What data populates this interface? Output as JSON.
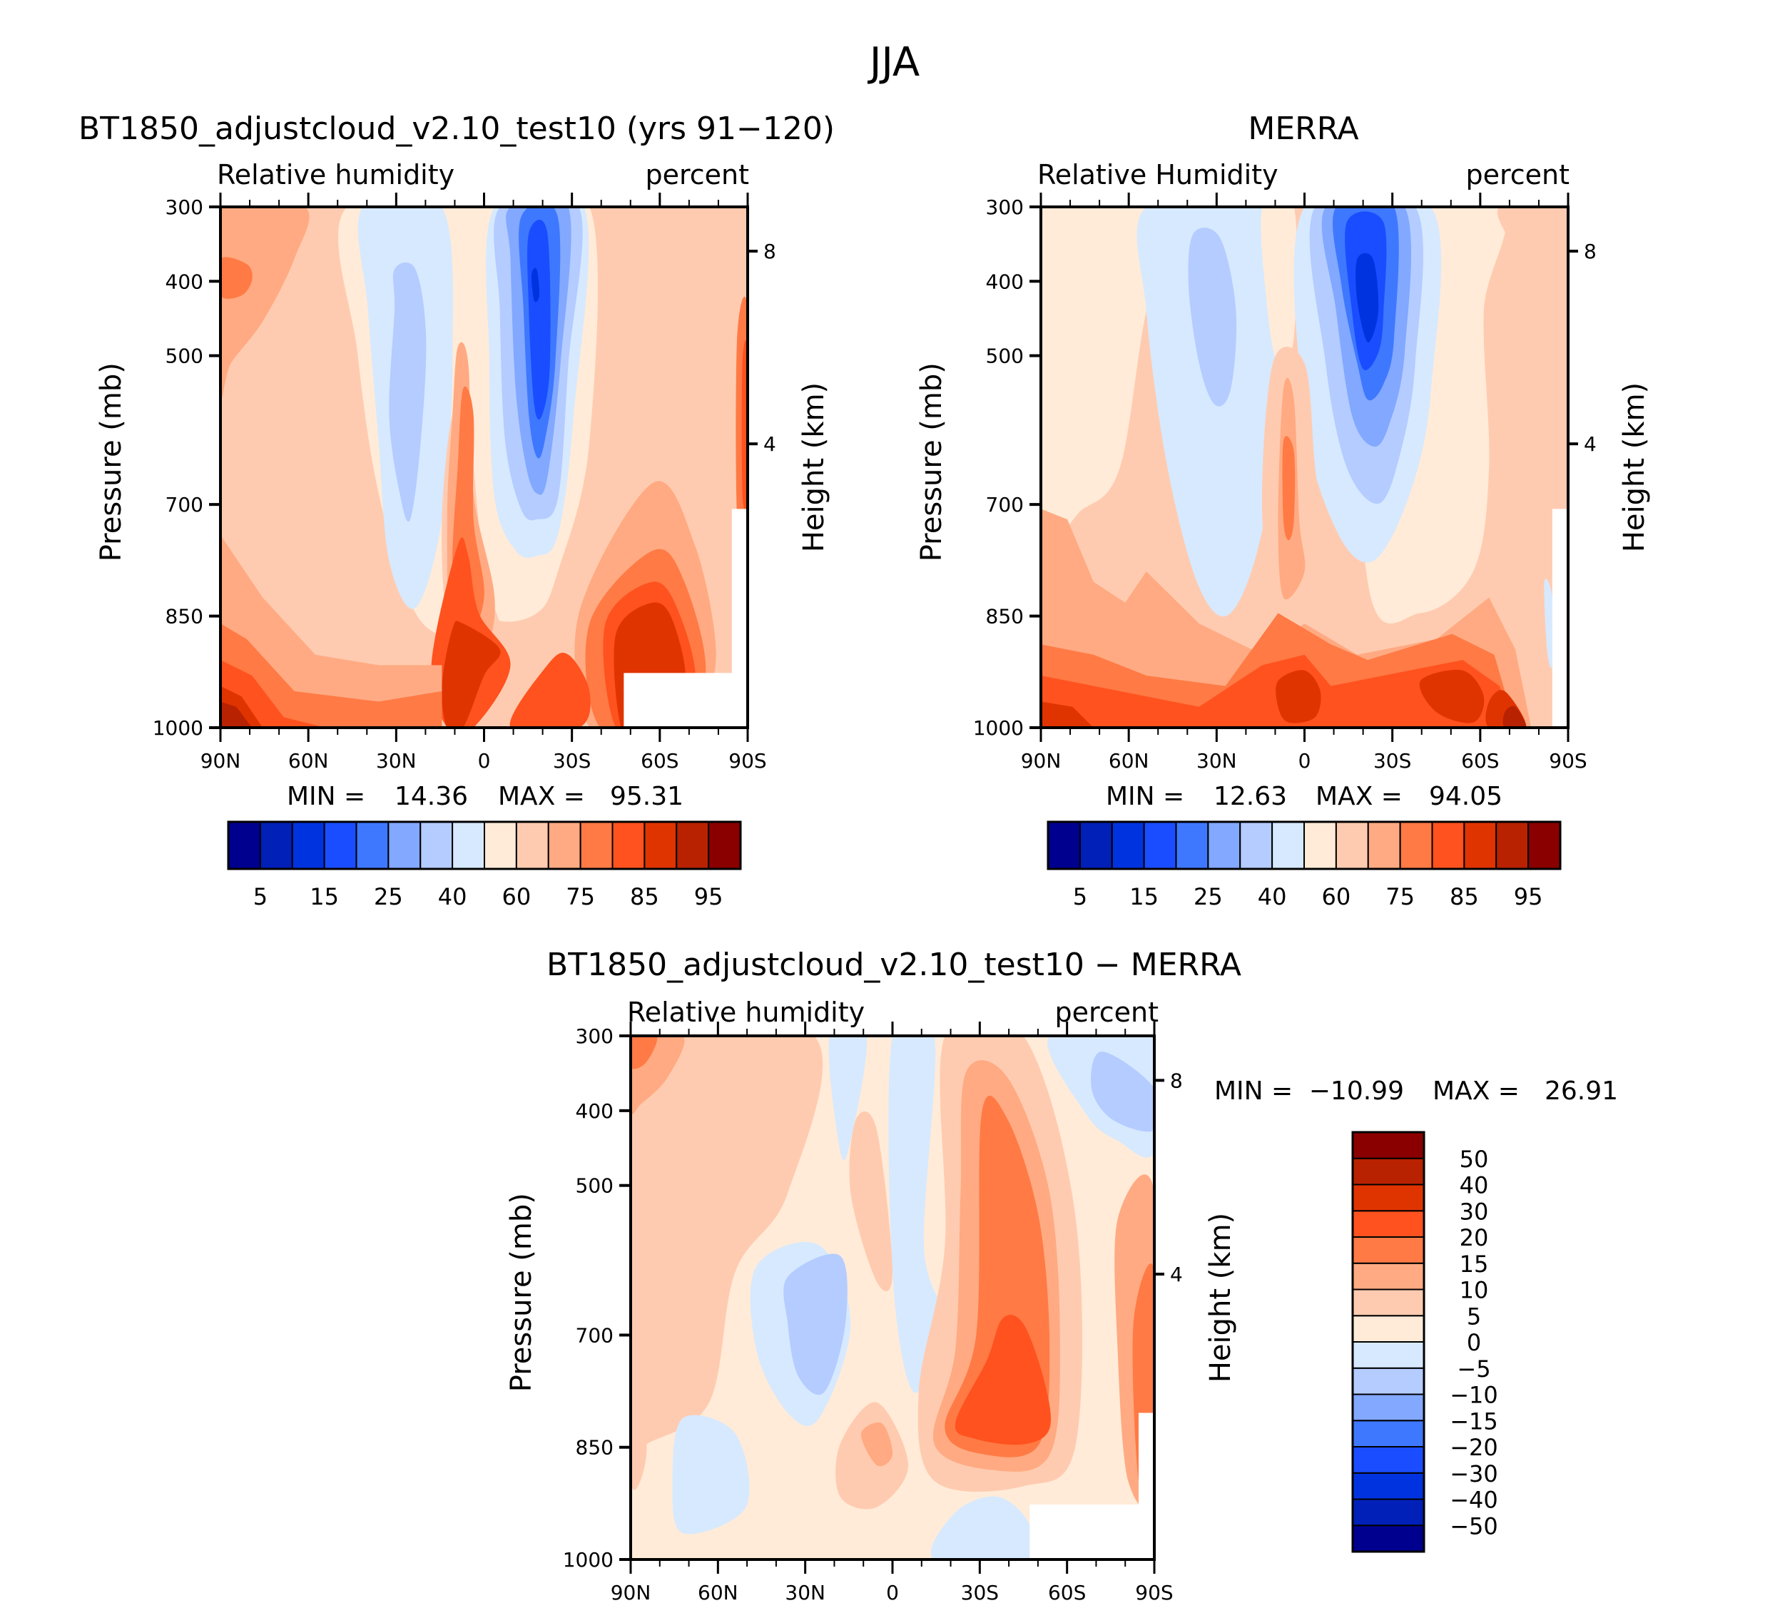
{
  "figure_title": "JJA",
  "chart_data": [
    {
      "type": "heatmap",
      "id": "model",
      "title": "BT1850_adjustcloud_v2.10_test10 (yrs 91−120)",
      "variable_label": "Relative humidity",
      "units_label": "percent",
      "xlabel": "",
      "ylabel": "Pressure (mb)",
      "ylabel_right": "Height (km)",
      "x_ticks": [
        "90N",
        "60N",
        "30N",
        "0",
        "30S",
        "60S",
        "90S"
      ],
      "x_range": [
        90,
        -90
      ],
      "y_ticks": [
        300,
        400,
        500,
        700,
        850,
        1000
      ],
      "y_range": [
        300,
        1000
      ],
      "right_ticks": [
        "8",
        "4"
      ],
      "min_label": "MIN =",
      "min_value": "14.36",
      "max_label": "MAX =",
      "max_value": "95.31",
      "colorbar": {
        "orientation": "horizontal",
        "levels": [
          5,
          10,
          15,
          20,
          25,
          30,
          40,
          50,
          60,
          70,
          75,
          80,
          85,
          90,
          95
        ],
        "tick_labels": [
          "5",
          "15",
          "25",
          "40",
          "60",
          "75",
          "85",
          "95"
        ],
        "colors": [
          "#00008f",
          "#0020b8",
          "#0033e0",
          "#1a4dff",
          "#3e78ff",
          "#82a8ff",
          "#b4ccff",
          "#d6e9ff",
          "#ffebd8",
          "#ffcbb0",
          "#ffaa82",
          "#ff7a45",
          "#ff521e",
          "#e03400",
          "#b82200",
          "#8a0000"
        ]
      }
    },
    {
      "type": "heatmap",
      "id": "obs",
      "title": "MERRA",
      "variable_label": "Relative Humidity",
      "units_label": "percent",
      "xlabel": "",
      "ylabel": "Pressure (mb)",
      "ylabel_right": "Height (km)",
      "x_ticks": [
        "90N",
        "60N",
        "30N",
        "0",
        "30S",
        "60S",
        "90S"
      ],
      "x_range": [
        90,
        -90
      ],
      "y_ticks": [
        300,
        400,
        500,
        700,
        850,
        1000
      ],
      "y_range": [
        300,
        1000
      ],
      "right_ticks": [
        "8",
        "4"
      ],
      "min_label": "MIN =",
      "min_value": "12.63",
      "max_label": "MAX =",
      "max_value": "94.05",
      "colorbar": {
        "orientation": "horizontal",
        "levels": [
          5,
          10,
          15,
          20,
          25,
          30,
          40,
          50,
          60,
          70,
          75,
          80,
          85,
          90,
          95
        ],
        "tick_labels": [
          "5",
          "15",
          "25",
          "40",
          "60",
          "75",
          "85",
          "95"
        ],
        "colors": [
          "#00008f",
          "#0020b8",
          "#0033e0",
          "#1a4dff",
          "#3e78ff",
          "#82a8ff",
          "#b4ccff",
          "#d6e9ff",
          "#ffebd8",
          "#ffcbb0",
          "#ffaa82",
          "#ff7a45",
          "#ff521e",
          "#e03400",
          "#b82200",
          "#8a0000"
        ]
      }
    },
    {
      "type": "heatmap",
      "id": "diff",
      "title": "BT1850_adjustcloud_v2.10_test10 − MERRA",
      "variable_label": "Relative humidity",
      "units_label": "percent",
      "xlabel": "",
      "ylabel": "Pressure (mb)",
      "ylabel_right": "Height (km)",
      "x_ticks": [
        "90N",
        "60N",
        "30N",
        "0",
        "30S",
        "60S",
        "90S"
      ],
      "x_range": [
        90,
        -90
      ],
      "y_ticks": [
        300,
        400,
        500,
        700,
        850,
        1000
      ],
      "y_range": [
        300,
        1000
      ],
      "right_ticks": [
        "8",
        "4"
      ],
      "min_label": "MIN =",
      "min_value": "−10.99",
      "max_label": "MAX =",
      "max_value": "26.91",
      "colorbar": {
        "orientation": "vertical",
        "levels": [
          -50,
          -40,
          -30,
          -20,
          -15,
          -10,
          -5,
          0,
          5,
          10,
          15,
          20,
          30,
          40,
          50
        ],
        "tick_labels": [
          "−50",
          "−40",
          "−30",
          "−20",
          "−15",
          "−10",
          "−5",
          "0",
          "5",
          "10",
          "15",
          "20",
          "30",
          "40",
          "50"
        ],
        "colors": [
          "#00008f",
          "#0020b8",
          "#0033e0",
          "#1a4dff",
          "#3e78ff",
          "#82a8ff",
          "#b4ccff",
          "#d6e9ff",
          "#ffebd8",
          "#ffcbb0",
          "#ffaa82",
          "#ff7a45",
          "#ff521e",
          "#e03400",
          "#b82200",
          "#8a0000"
        ]
      }
    }
  ]
}
